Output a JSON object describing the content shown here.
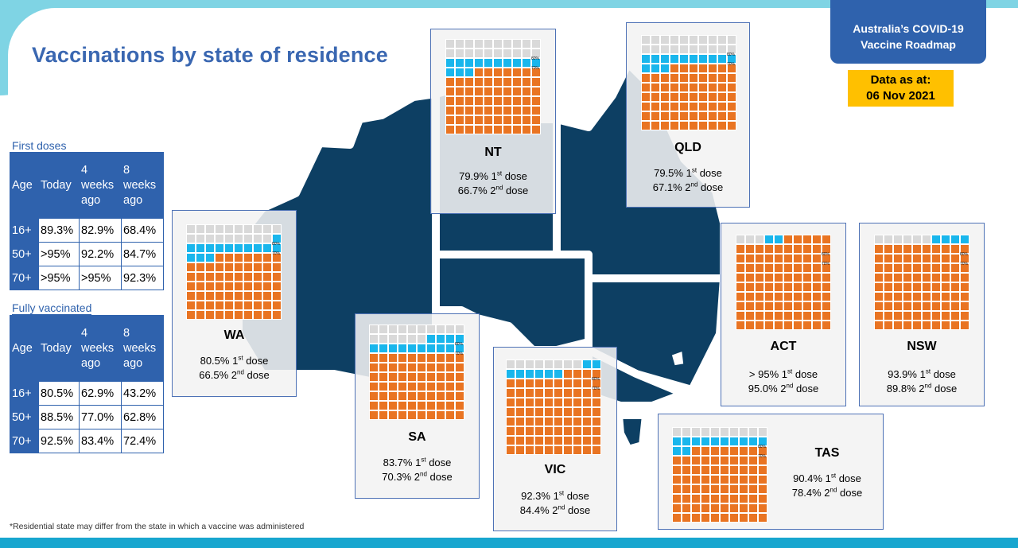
{
  "header": {
    "title": "Vaccinations by state of residence",
    "roadmap_line1": "Australia’s COVID-19",
    "roadmap_line2": "Vaccine Roadmap",
    "date_line1": "Data as at:",
    "date_line2": "06 Nov 2021"
  },
  "first_doses": {
    "label": "First doses",
    "headers": [
      "Age",
      "Today",
      "4 weeks ago",
      "8 weeks ago"
    ],
    "rows": [
      [
        "16+",
        "89.3%",
        "82.9%",
        "68.4%"
      ],
      [
        "50+",
        ">95%",
        "92.2%",
        "84.7%"
      ],
      [
        "70+",
        ">95%",
        ">95%",
        "92.3%"
      ]
    ]
  },
  "fully_vaccinated": {
    "label": "Fully vaccinated",
    "headers": [
      "Age",
      "Today",
      "4 weeks ago",
      "8 weeks ago"
    ],
    "rows": [
      [
        "16+",
        "80.5%",
        "62.9%",
        "43.2%"
      ],
      [
        "50+",
        "88.5%",
        "77.0%",
        "62.8%"
      ],
      [
        "70+",
        "92.5%",
        "83.4%",
        "72.4%"
      ]
    ]
  },
  "dose_suffix": {
    "first": "1",
    "first_sup": "st",
    "second": "2",
    "second_sup": "nd",
    "word": "dose"
  },
  "grid_ticks": {
    "t80": "80%",
    "t70": "70%"
  },
  "states": [
    {
      "id": "nt",
      "name": "NT",
      "first": "79.9%",
      "second": "66.7%",
      "first_pct": 79.9,
      "second_pct": 66.7
    },
    {
      "id": "qld",
      "name": "QLD",
      "first": "79.5%",
      "second": "67.1%",
      "first_pct": 79.5,
      "second_pct": 67.1
    },
    {
      "id": "wa",
      "name": "WA",
      "first": "80.5%",
      "second": "66.5%",
      "first_pct": 80.5,
      "second_pct": 66.5
    },
    {
      "id": "sa",
      "name": "SA",
      "first": "83.7%",
      "second": "70.3%",
      "first_pct": 83.7,
      "second_pct": 70.3
    },
    {
      "id": "vic",
      "name": "VIC",
      "first": "92.3%",
      "second": "84.4%",
      "first_pct": 92.3,
      "second_pct": 84.4
    },
    {
      "id": "act",
      "name": "ACT",
      "first": "> 95%",
      "second": "95.0%",
      "first_pct": 97,
      "second_pct": 95.0
    },
    {
      "id": "nsw",
      "name": "NSW",
      "first": "93.9%",
      "second": "89.8%",
      "first_pct": 93.9,
      "second_pct": 89.8
    },
    {
      "id": "tas",
      "name": "TAS",
      "first": "90.4%",
      "second": "78.4%",
      "first_pct": 90.4,
      "second_pct": 78.4
    }
  ],
  "footnote": "*Residential state may differ from the state in which a vaccine was administered",
  "colors": {
    "map": "#0d3f63",
    "first_dose": "#19b6ec",
    "second_dose": "#e97422",
    "unvaccinated": "#d9d9d9",
    "brand": "#2f62ad"
  }
}
